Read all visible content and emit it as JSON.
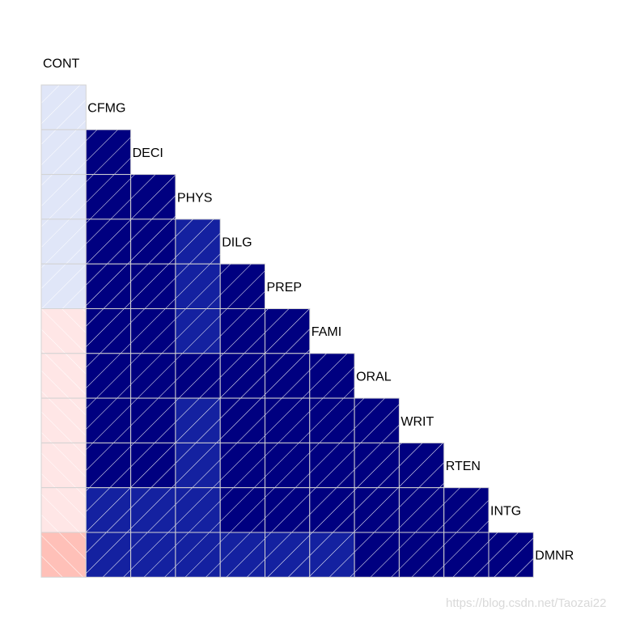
{
  "chart_data": {
    "type": "heatmap",
    "variables": [
      "CONT",
      "CFMG",
      "DECI",
      "PHYS",
      "DILG",
      "PREP",
      "FAMI",
      "ORAL",
      "WRIT",
      "RTEN",
      "INTG",
      "DMNR"
    ],
    "lower_triangle": [
      [
        0.05
      ],
      [
        0.04,
        0.96
      ],
      [
        0.05,
        0.91,
        0.92
      ],
      [
        0.01,
        0.96,
        0.96,
        0.88
      ],
      [
        0.01,
        0.95,
        0.96,
        0.85,
        0.98
      ],
      [
        -0.02,
        0.94,
        0.95,
        0.87,
        0.96,
        0.99
      ],
      [
        -0.01,
        0.95,
        0.96,
        0.91,
        0.96,
        0.98,
        0.98
      ],
      [
        -0.04,
        0.94,
        0.95,
        0.89,
        0.96,
        0.99,
        0.99,
        0.99
      ],
      [
        -0.03,
        0.94,
        0.94,
        0.88,
        0.97,
        0.96,
        0.96,
        0.98,
        0.97
      ],
      [
        -0.05,
        0.87,
        0.87,
        0.85,
        0.96,
        0.95,
        0.94,
        0.95,
        0.95,
        0.98
      ],
      [
        -0.15,
        0.86,
        0.86,
        0.84,
        0.88,
        0.87,
        0.86,
        0.91,
        0.91,
        0.93,
        0.96
      ]
    ],
    "panel": "shade",
    "colors": {
      "strong_positive": "#000080",
      "positive": "#1421A0",
      "weak_positive": "#E0E6F8",
      "weak_negative": "#FFE6E6",
      "negative": "#FFC0B8",
      "grid": "#D3D3D3",
      "hatch": "#FFFFFF"
    }
  },
  "watermark": "https://blog.csdn.net/Taozai22"
}
